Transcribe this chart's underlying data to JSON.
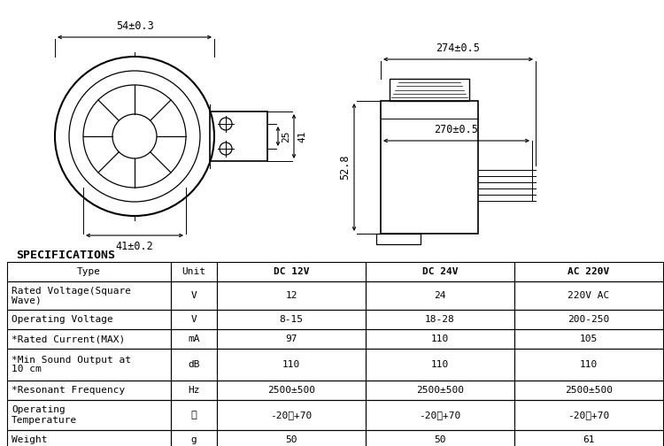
{
  "bg_color": "#ffffff",
  "table_header": [
    "Type",
    "Unit",
    "DC 12V",
    "DC 24V",
    "AC 220V"
  ],
  "table_rows": [
    [
      "Rated Voltage(Square\nWave)",
      "V",
      "12",
      "24",
      "220V AC"
    ],
    [
      "Operating Voltage",
      "V",
      "8-15",
      "18-28",
      "200-250"
    ],
    [
      "*Rated Current(MAX)",
      "mA",
      "97",
      "110",
      "105"
    ],
    [
      "*Min Sound Output at\n10 cm",
      "dB",
      "110",
      "110",
      "110"
    ],
    [
      "*Resonant Frequency",
      "Hz",
      "2500±500",
      "2500±500",
      "2500±500"
    ],
    [
      "Operating\nTemperature",
      "℃",
      "-20～+70",
      "-20～+70",
      "-20～+70"
    ],
    [
      "Weight",
      "g",
      "50",
      "50",
      "61"
    ]
  ],
  "spec_title": "SPECIFICATIONS",
  "dim_top": "54±0.3",
  "dim_bottom": "41±0.2",
  "dim_right_25": "25",
  "dim_right_41": "41",
  "dim_height": "52.8",
  "dim_width_top": "274±0.5",
  "dim_width_bottom": "270±0.5",
  "line_color": "#000000",
  "text_color": "#000000"
}
